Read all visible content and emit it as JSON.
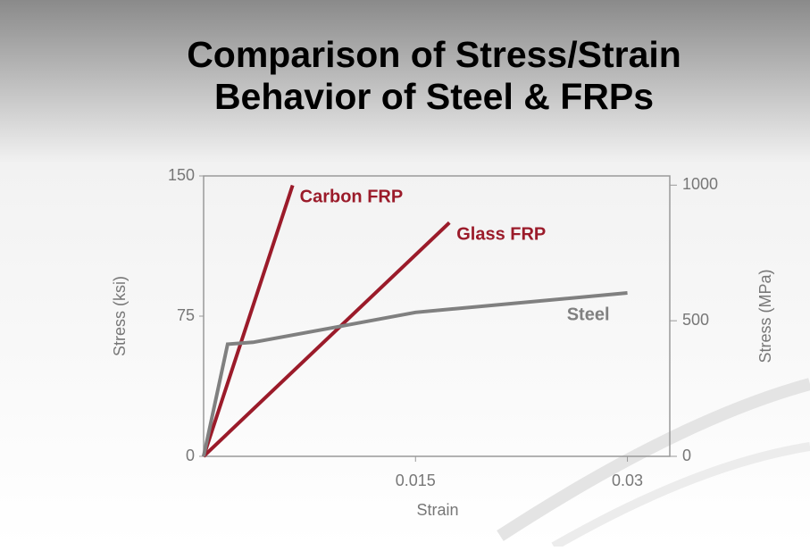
{
  "slide": {
    "title_lines": [
      "Comparison of Stress/Strain",
      "Behavior of Steel & FRPs"
    ]
  },
  "chart_data": {
    "type": "line",
    "x_label": "Strain",
    "y_label": "Stress (ksi)",
    "y2_label": "Stress (MPa)",
    "xlim": [
      0,
      0.033
    ],
    "xticks": [
      0.015,
      0.03
    ],
    "ylim": [
      0,
      150
    ],
    "yticks": [
      0,
      75,
      150
    ],
    "y2lim": [
      0,
      1034
    ],
    "y2ticks": [
      0,
      500,
      1000
    ],
    "series": [
      {
        "name": "Carbon FRP",
        "color": "#9b1b2a",
        "x": [
          0,
          0.0063
        ],
        "values": [
          0,
          145
        ]
      },
      {
        "name": "Glass FRP",
        "color": "#9b1b2a",
        "x": [
          0,
          0.0174
        ],
        "values": [
          0,
          125
        ]
      },
      {
        "name": "Steel",
        "color": "#808080",
        "x": [
          0,
          0.0017,
          0.0035,
          0.01,
          0.015,
          0.03
        ],
        "values": [
          0,
          60,
          61,
          70,
          77,
          87.4
        ]
      }
    ]
  }
}
